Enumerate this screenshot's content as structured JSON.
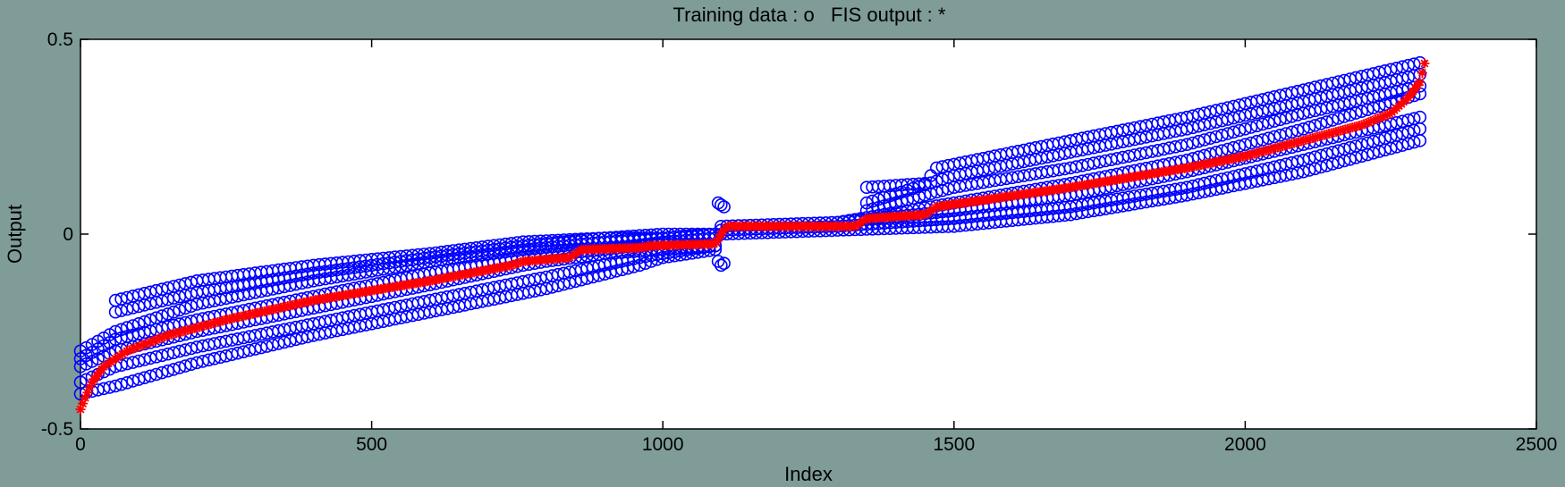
{
  "chart_data": {
    "type": "scatter",
    "title": "Training data : o   FIS output : *",
    "xlabel": "Index",
    "ylabel": "Output",
    "xlim": [
      0,
      2500
    ],
    "ylim": [
      -0.5,
      0.5
    ],
    "xticks": [
      0,
      500,
      1000,
      1500,
      2000,
      2500
    ],
    "yticks": [
      -0.5,
      0,
      0.5
    ],
    "xtick_labels": [
      "0",
      "500",
      "1000",
      "1500",
      "2000",
      "2500"
    ],
    "ytick_labels": [
      "-0.5",
      "0",
      "0.5"
    ],
    "grid": false,
    "legend": "none",
    "series": [
      {
        "marker": "o",
        "color": "#0000ff",
        "bands": [
          {
            "x": [
              0,
              60,
              200,
              400,
              600,
              800,
              960,
              1000,
              1090
            ],
            "y": [
              -0.41,
              -0.39,
              -0.33,
              -0.26,
              -0.2,
              -0.14,
              -0.08,
              -0.06,
              -0.04
            ]
          },
          {
            "x": [
              0,
              60,
              200,
              400,
              600,
              800,
              960,
              1000,
              1090
            ],
            "y": [
              -0.38,
              -0.34,
              -0.29,
              -0.23,
              -0.17,
              -0.11,
              -0.06,
              -0.05,
              -0.03
            ]
          },
          {
            "x": [
              0,
              60,
              200,
              400,
              600,
              760,
              800,
              900,
              1000,
              1090
            ],
            "y": [
              -0.34,
              -0.3,
              -0.25,
              -0.19,
              -0.13,
              -0.08,
              -0.07,
              -0.05,
              -0.04,
              -0.03
            ]
          },
          {
            "x": [
              0,
              60,
              200,
              400,
              600,
              760,
              900,
              1000,
              1090
            ],
            "y": [
              -0.32,
              -0.27,
              -0.22,
              -0.16,
              -0.1,
              -0.06,
              -0.04,
              -0.02,
              -0.01
            ]
          },
          {
            "x": [
              0,
              60,
              200,
              400,
              600,
              760,
              900,
              1000,
              1090
            ],
            "y": [
              -0.3,
              -0.25,
              -0.18,
              -0.12,
              -0.07,
              -0.04,
              -0.02,
              -0.01,
              0.0
            ]
          },
          {
            "x": [
              60,
              200,
              400,
              600,
              760,
              900,
              1000,
              1090
            ],
            "y": [
              -0.2,
              -0.15,
              -0.1,
              -0.06,
              -0.03,
              -0.01,
              -0.01,
              0.0
            ]
          },
          {
            "x": [
              60,
              200,
              400,
              600,
              760,
              900,
              1000,
              1090
            ],
            "y": [
              -0.17,
              -0.12,
              -0.08,
              -0.05,
              -0.02,
              -0.01,
              0.0,
              0.0
            ]
          },
          {
            "x": [
              1100,
              1300,
              1500,
              1700,
              1900,
              2100,
              2300
            ],
            "y": [
              0.0,
              0.01,
              0.02,
              0.05,
              0.1,
              0.16,
              0.24
            ]
          },
          {
            "x": [
              1100,
              1300,
              1500,
              1700,
              1900,
              2100,
              2300
            ],
            "y": [
              0.01,
              0.02,
              0.04,
              0.07,
              0.12,
              0.19,
              0.27
            ]
          },
          {
            "x": [
              1100,
              1300,
              1500,
              1700,
              1900,
              2100,
              2300
            ],
            "y": [
              0.02,
              0.03,
              0.06,
              0.1,
              0.16,
              0.23,
              0.3
            ]
          },
          {
            "x": [
              1300,
              1500,
              1700,
              1900,
              2100,
              2300
            ],
            "y": [
              0.03,
              0.08,
              0.13,
              0.19,
              0.27,
              0.36
            ]
          },
          {
            "x": [
              1350,
              1500,
              1700,
              1900,
              2100,
              2300
            ],
            "y": [
              0.06,
              0.12,
              0.17,
              0.23,
              0.31,
              0.38
            ]
          },
          {
            "x": [
              1350,
              1500,
              1700,
              1900,
              2100,
              2300
            ],
            "y": [
              0.08,
              0.15,
              0.21,
              0.27,
              0.34,
              0.41
            ]
          },
          {
            "x": [
              1350,
              1450,
              1470,
              1700,
              1900,
              2100,
              2300
            ],
            "y": [
              0.12,
              0.13,
              0.17,
              0.24,
              0.3,
              0.37,
              0.44
            ]
          }
        ],
        "extra_points": [
          {
            "x": 1095,
            "y": 0.08
          },
          {
            "x": 1100,
            "y": 0.075
          },
          {
            "x": 1105,
            "y": 0.07
          },
          {
            "x": 1095,
            "y": -0.07
          },
          {
            "x": 1100,
            "y": -0.08
          },
          {
            "x": 1105,
            "y": -0.075
          }
        ]
      },
      {
        "marker": "*",
        "color": "#ff0000",
        "x": [
          0,
          8,
          20,
          40,
          80,
          150,
          250,
          400,
          600,
          740,
          760,
          840,
          860,
          960,
          980,
          1090,
          1100,
          1110,
          1330,
          1350,
          1450,
          1470,
          1700,
          1900,
          2000,
          2100,
          2200,
          2250,
          2280,
          2300,
          2310
        ],
        "y": [
          -0.45,
          -0.42,
          -0.38,
          -0.34,
          -0.3,
          -0.26,
          -0.22,
          -0.17,
          -0.12,
          -0.08,
          -0.07,
          -0.06,
          -0.04,
          -0.035,
          -0.03,
          -0.025,
          0.0,
          0.02,
          0.02,
          0.04,
          0.05,
          0.07,
          0.12,
          0.17,
          0.2,
          0.24,
          0.28,
          0.31,
          0.35,
          0.39,
          0.45
        ]
      }
    ]
  }
}
